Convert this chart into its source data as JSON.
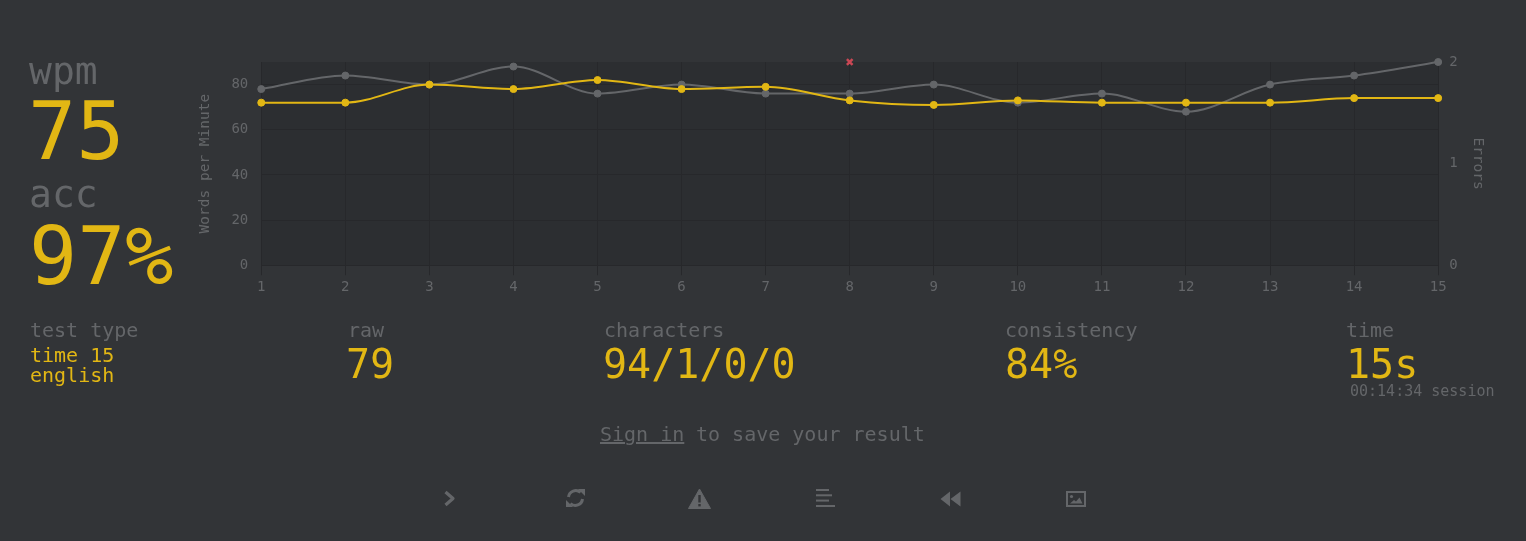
{
  "chart_data": [
    {
      "type": "line",
      "ylabel": "Words per Minute",
      "y2label": "Errors",
      "x": [
        1,
        2,
        3,
        4,
        5,
        6,
        7,
        8,
        9,
        10,
        11,
        12,
        13,
        14,
        15
      ],
      "xlim": [
        1,
        15
      ],
      "xticks": [
        1,
        2,
        3,
        4,
        5,
        6,
        7,
        8,
        9,
        10,
        11,
        12,
        13,
        14,
        15
      ],
      "ylim": [
        0,
        90
      ],
      "yticks": [
        0,
        20,
        40,
        60,
        80
      ],
      "y2lim": [
        0,
        2
      ],
      "y2ticks": [
        0,
        1,
        2
      ],
      "grid": true,
      "legend": false,
      "marker": "circle",
      "series": [
        {
          "color": "#646669",
          "values": [
            78,
            84,
            80,
            88,
            76,
            80,
            76,
            76,
            80,
            72,
            76,
            68,
            80,
            84,
            90
          ]
        },
        {
          "color": "#e2b714",
          "values": [
            72,
            72,
            80,
            78,
            82,
            78,
            79,
            73,
            71,
            73,
            72,
            72,
            72,
            74,
            74
          ]
        },
        {
          "type": "scatter",
          "axis": "y2",
          "marker": "cross",
          "color": "#ca4754",
          "x": [
            8
          ],
          "values": [
            2
          ]
        }
      ]
    },
    {
      "type": "other",
      "annotations": [
        "wpm",
        "75",
        "acc",
        "97%",
        "test type",
        "time 15",
        "english",
        "raw",
        "79",
        "characters",
        "94/1/0/0",
        "consistency",
        "84%",
        "time",
        "15s",
        "00:14:34 session",
        "Sign in",
        "to save your result"
      ]
    }
  ]
}
